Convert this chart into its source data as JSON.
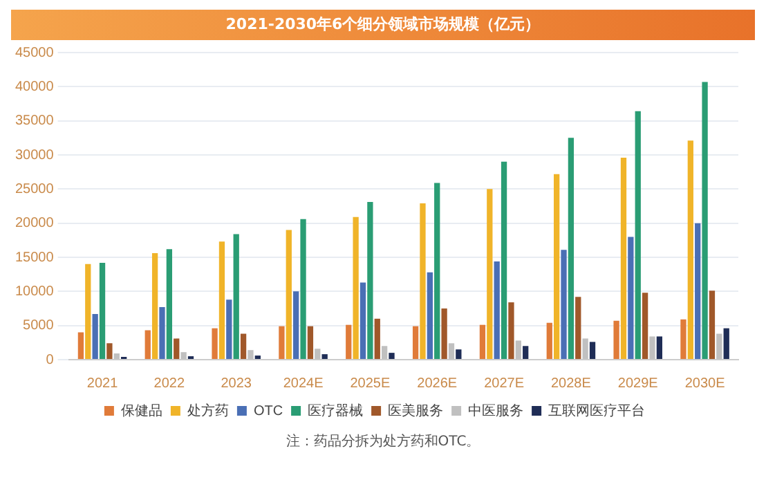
{
  "chart_data": {
    "type": "bar",
    "title": "2021-2030年6个细分领域市场规模（亿元）",
    "categories": [
      "2021",
      "2022",
      "2023",
      "2024E",
      "2025E",
      "2026E",
      "2027E",
      "2028E",
      "2029E",
      "2030E"
    ],
    "series": [
      {
        "name": "保健品",
        "color": "#e07b39",
        "values": [
          4000,
          4300,
          4600,
          4900,
          5100,
          4900,
          5100,
          5400,
          5700,
          5900
        ]
      },
      {
        "name": "处方药",
        "color": "#f0b429",
        "values": [
          14000,
          15600,
          17300,
          19000,
          20900,
          22900,
          25000,
          27200,
          29600,
          32100
        ]
      },
      {
        "name": "OTC",
        "color": "#4a6fb5",
        "values": [
          6700,
          7700,
          8800,
          10000,
          11300,
          12800,
          14400,
          16100,
          18000,
          20000
        ]
      },
      {
        "name": "医疗器械",
        "color": "#2a9d74",
        "values": [
          14200,
          16200,
          18400,
          20600,
          23100,
          25900,
          29000,
          32500,
          36400,
          40700
        ]
      },
      {
        "name": "医美服务",
        "color": "#a0582a",
        "values": [
          2400,
          3100,
          3800,
          4900,
          6000,
          7500,
          8400,
          9200,
          9800,
          10100
        ]
      },
      {
        "name": "中医服务",
        "color": "#c0c0c0",
        "values": [
          900,
          1100,
          1400,
          1600,
          2000,
          2400,
          2800,
          3100,
          3400,
          3800
        ]
      },
      {
        "name": "互联网医疗平台",
        "color": "#1f2d56",
        "values": [
          400,
          500,
          600,
          800,
          1000,
          1500,
          2000,
          2600,
          3400,
          4600
        ]
      }
    ],
    "ylim": [
      0,
      45000
    ],
    "yticks": [
      0,
      5000,
      10000,
      15000,
      20000,
      25000,
      30000,
      35000,
      40000,
      45000
    ],
    "grid": "y",
    "legend": "bottom",
    "annotations": [
      "注：药品分拆为处方药和OTC。"
    ]
  }
}
